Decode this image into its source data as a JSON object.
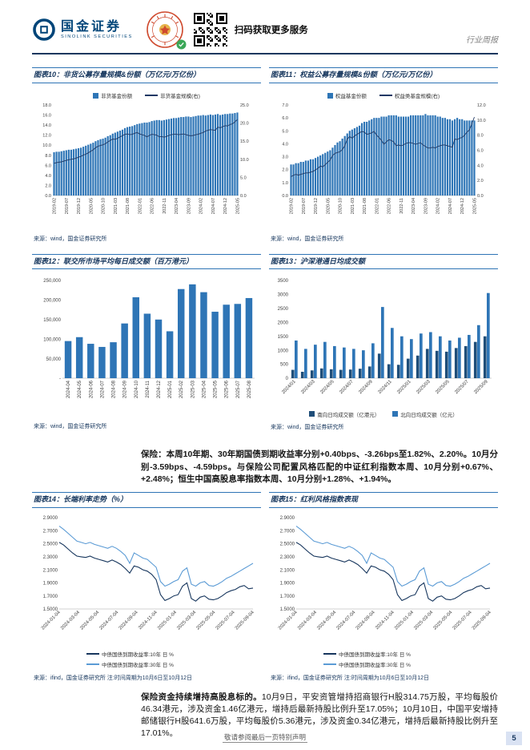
{
  "header": {
    "logo_cn": "国金证券",
    "logo_en": "SINOLINK SECURITIES",
    "qr_caption": "扫码获取更多服务",
    "doc_type": "行业周报"
  },
  "sections": {
    "insurance_paragraph": "保险：本周10年期、30年期国债到期收益率分别+0.40bps、-3.26bps至1.82%、2.20%。10月分别-3.59bps、-4.59bps。与保险公司配置风格匹配的中证红利指数本周、10月分别+0.67%、+2.48%；恒生中国高股息率指数本周、10月分别+1.28%、+1.94%。",
    "bottom_lead": "保险资金持续增持高股息标的。",
    "bottom_body": "10月9日，平安资管增持招商银行H股314.75万股，平均每股价46.34港元，涉及资金1.46亿港元，增持后最新持股比例升至17.05%；10月10日，中国平安增持邮储银行H股641.6万股，平均每股价5.36港元，涉及资金0.34亿港元，增持后最新持股比例升至17.01%。"
  },
  "footer": {
    "disclaimer": "敬请参阅最后一页特别声明",
    "page": "5"
  },
  "chart_data": [
    {
      "id": "chart10",
      "type": "bar-line",
      "title": "图表10：非货公募存量规模&份额（万亿元/万亿份）",
      "source": "来源：wind，国金证券研究所",
      "legend": [
        {
          "label": "非货基金份额",
          "swatch": "bar",
          "color": "#2e75b6"
        },
        {
          "label": "非货基金规模(右)",
          "swatch": "line",
          "color": "#1f3864"
        }
      ],
      "left_axis": {
        "min": 0,
        "max": 18,
        "ticks": [
          "18.0",
          "16.0",
          "14.0",
          "12.0",
          "10.0",
          "8.0",
          "6.0",
          "4.0",
          "2.0",
          "0.0"
        ]
      },
      "right_axis": {
        "min": 0,
        "max": 25,
        "ticks": [
          "25.0",
          "20.0",
          "15.0",
          "10.0",
          "5.0",
          "0.0"
        ]
      },
      "bar_color": "#2e75b6",
      "line_color": "#1f3864",
      "x_every": 5,
      "x_labels": [
        "2019-02",
        "2019-07",
        "2019-12",
        "2020-05",
        "2020-10",
        "2021-03",
        "2021-08",
        "2022-01",
        "2022-06",
        "2022-11",
        "2023-04",
        "2023-09",
        "2024-02",
        "2024-07",
        "2024-12",
        "2025-05"
      ],
      "bars": [
        8.6,
        8.7,
        8.7,
        8.8,
        8.9,
        9.0,
        9.1,
        9.1,
        9.2,
        9.3,
        9.4,
        9.5,
        9.7,
        9.9,
        10.1,
        10.3,
        10.5,
        10.8,
        11.0,
        11.2,
        11.3,
        11.5,
        11.8,
        12.0,
        12.3,
        12.5,
        12.7,
        12.9,
        13.1,
        13.4,
        13.6,
        13.7,
        13.8,
        14.0,
        14.2,
        14.3,
        14.4,
        14.5,
        14.5,
        14.6,
        14.8,
        14.9,
        15.0,
        15.0,
        14.9,
        15.0,
        15.1,
        15.2,
        15.3,
        15.4,
        15.4,
        15.5,
        15.6,
        15.6,
        15.7,
        15.7,
        15.6,
        15.7,
        15.8,
        15.9,
        15.9,
        16.0,
        15.9,
        16.0,
        16.1,
        16.0,
        16.1,
        16.2,
        16.0,
        16.1,
        16.2,
        16.2,
        16.3,
        16.3,
        16.4,
        16.5
      ],
      "line": [
        8.9,
        9.1,
        9.2,
        9.3,
        9.5,
        9.7,
        9.9,
        10.0,
        10.1,
        10.3,
        10.6,
        10.8,
        11.2,
        11.4,
        11.8,
        12.2,
        12.6,
        13.2,
        13.6,
        13.8,
        14.0,
        14.3,
        14.8,
        15.2,
        15.6,
        15.5,
        15.8,
        16.2,
        16.5,
        16.9,
        17.0,
        16.8,
        16.9,
        17.2,
        17.4,
        17.0,
        16.8,
        16.6,
        16.2,
        16.6,
        16.9,
        16.8,
        16.7,
        16.2,
        16.3,
        16.1,
        16.3,
        16.6,
        16.8,
        16.9,
        16.9,
        16.8,
        16.9,
        17.0,
        16.8,
        16.6,
        16.5,
        16.6,
        16.8,
        16.9,
        17.2,
        17.4,
        17.8,
        18.0,
        18.2,
        18.1,
        18.0,
        18.9,
        18.7,
        19.0,
        19.3,
        19.2,
        19.6,
        19.8,
        20.3,
        21.0
      ]
    },
    {
      "id": "chart11",
      "type": "bar-line",
      "title": "图表11：权益公募存量规模&份额（万亿元/万亿份）",
      "source": "来源：wind，国金证券研究所",
      "legend": [
        {
          "label": "权益基金份额",
          "swatch": "bar",
          "color": "#2e75b6"
        },
        {
          "label": "权益类基金规模(右)",
          "swatch": "line",
          "color": "#1f3864"
        }
      ],
      "left_axis": {
        "min": 0,
        "max": 7,
        "ticks": [
          "7.0",
          "6.0",
          "5.0",
          "4.0",
          "3.0",
          "2.0",
          "1.0",
          "0.0"
        ]
      },
      "right_axis": {
        "min": 0,
        "max": 12,
        "ticks": [
          "12.0",
          "10.0",
          "8.0",
          "6.0",
          "4.0",
          "2.0",
          "0.0"
        ]
      },
      "bar_color": "#2e75b6",
      "line_color": "#1f3864",
      "x_every": 5,
      "x_labels": [
        "2019-02",
        "2019-07",
        "2019-12",
        "2020-05",
        "2020-10",
        "2021-03",
        "2021-08",
        "2022-01",
        "2022-06",
        "2022-11",
        "2023-04",
        "2023-09",
        "2024-02",
        "2024-07",
        "2024-12",
        "2025-05"
      ],
      "bars": [
        2.4,
        2.4,
        2.5,
        2.5,
        2.6,
        2.6,
        2.7,
        2.7,
        2.8,
        2.8,
        2.9,
        3.0,
        3.1,
        3.2,
        3.3,
        3.4,
        3.5,
        3.7,
        3.9,
        4.1,
        4.2,
        4.4,
        4.6,
        4.8,
        5.0,
        5.1,
        5.2,
        5.3,
        5.4,
        5.6,
        5.7,
        5.7,
        5.8,
        5.9,
        6.0,
        6.0,
        6.0,
        6.1,
        6.1,
        6.1,
        6.2,
        6.2,
        6.2,
        6.2,
        6.1,
        6.1,
        6.1,
        6.1,
        6.1,
        6.2,
        6.2,
        6.2,
        6.2,
        6.2,
        6.2,
        6.3,
        6.2,
        6.2,
        6.2,
        6.2,
        6.1,
        6.1,
        6.0,
        6.0,
        5.9,
        5.9,
        5.8,
        5.9,
        6.0,
        5.9,
        5.9,
        5.8,
        5.8,
        5.8,
        5.8,
        5.8
      ],
      "line": [
        2.5,
        2.7,
        2.8,
        2.7,
        2.8,
        2.9,
        3.0,
        3.0,
        3.1,
        3.2,
        3.4,
        3.6,
        3.9,
        3.8,
        4.1,
        4.4,
        4.7,
        5.3,
        5.6,
        5.7,
        5.8,
        6.1,
        6.6,
        7.5,
        7.8,
        7.6,
        7.9,
        8.1,
        8.3,
        8.5,
        8.4,
        8.1,
        8.2,
        8.3,
        8.5,
        8.0,
        7.7,
        7.3,
        6.8,
        7.1,
        7.4,
        7.3,
        7.1,
        6.6,
        6.7,
        6.6,
        6.7,
        6.9,
        7.0,
        7.0,
        6.9,
        6.8,
        6.9,
        7.0,
        6.7,
        6.5,
        6.3,
        6.3,
        6.4,
        6.3,
        6.5,
        6.6,
        6.7,
        6.7,
        6.6,
        6.5,
        6.4,
        7.5,
        7.4,
        7.6,
        7.7,
        8.0,
        8.4,
        8.7,
        9.5,
        10.4
      ]
    },
    {
      "id": "chart12",
      "type": "bar",
      "title": "图表12：联交所市场平均每日成交额（百万港元）",
      "source": "来源：wind，国金证券研究所",
      "left_axis": {
        "min": 0,
        "max": 250000,
        "ticks": [
          "250,000",
          "200,000",
          "150,000",
          "100,000",
          "50,000",
          "-"
        ]
      },
      "bar_color": "#2e75b6",
      "x_every": 1,
      "x_labels": [
        "2024-04",
        "2024-05",
        "2024-06",
        "2024-07",
        "2024-08",
        "2024-09",
        "2024-10",
        "2024-11",
        "2024-12",
        "2025-01",
        "2025-02",
        "2025-03",
        "2025-04",
        "2025-05",
        "2025-06",
        "2025-07",
        "2025-08"
      ],
      "bars": [
        95000,
        105000,
        88000,
        80000,
        92000,
        140000,
        207000,
        165000,
        150000,
        120000,
        228000,
        240000,
        220000,
        170000,
        188000,
        190000,
        205000
      ]
    },
    {
      "id": "chart13",
      "type": "grouped-bar",
      "title": "图表13：沪深港通日均成交额",
      "source": "来源：wind，国金证券研究所",
      "left_axis": {
        "min": 0,
        "max": 3500,
        "ticks": [
          "3500",
          "3000",
          "2500",
          "2000",
          "1500",
          "1000",
          "500",
          "0"
        ]
      },
      "x_every": 2,
      "x": [
        "2024/01",
        "2024/02",
        "2024/03",
        "2024/04",
        "2024/05",
        "2024/06",
        "2024/07",
        "2024/08",
        "2024/09",
        "2024/10",
        "2024/11",
        "2024/12",
        "2025/01",
        "2025/02",
        "2025/03",
        "2025/04",
        "2025/05",
        "2025/06",
        "2025/07",
        "2025/08",
        "2025/09"
      ],
      "x_labels": [
        "2024/01",
        "2024/03",
        "2024/05",
        "2024/07",
        "2024/09",
        "2024/11",
        "2025/01",
        "2025/03",
        "2025/05",
        "2025/07",
        "2025/09"
      ],
      "series": [
        {
          "name": "南向日均成交额（亿港元）",
          "color": "#1f4e79",
          "values": [
            300,
            230,
            280,
            350,
            320,
            300,
            310,
            340,
            420,
            880,
            500,
            480,
            700,
            810,
            1050,
            980,
            950,
            1080,
            1150,
            1300,
            1500
          ]
        },
        {
          "name": "北向日均成交额（亿元）",
          "color": "#2e75b6",
          "values": [
            1350,
            1050,
            1200,
            1300,
            1150,
            1100,
            1050,
            1000,
            1250,
            2550,
            1800,
            1500,
            1400,
            1600,
            1650,
            1500,
            1350,
            1450,
            1550,
            1900,
            3050
          ]
        }
      ]
    },
    {
      "id": "chart14",
      "type": "line",
      "title": "图表14：长端利率走势（%）",
      "source": "来源：ifind，国金证券研究所  注:时间周期为10月6日至10月12日",
      "left_axis": {
        "min": 1.5,
        "max": 2.9,
        "ticks": [
          "2.9000",
          "2.7000",
          "2.5000",
          "2.3000",
          "2.1000",
          "1.9000",
          "1.7000",
          "1.5000"
        ]
      },
      "x_labels": [
        "2024-01-04",
        "2024-03-04",
        "2024-05-04",
        "2024-07-04",
        "2024-09-04",
        "2024-11-04",
        "2025-01-04",
        "2025-03-04",
        "2025-05-04",
        "2025-07-04",
        "2025-09-04"
      ],
      "lines": [
        {
          "name": "中债国债到期收益率:10年 日 %",
          "color": "#17365d",
          "values": [
            2.52,
            2.48,
            2.42,
            2.36,
            2.31,
            2.3,
            2.29,
            2.31,
            2.28,
            2.26,
            2.24,
            2.22,
            2.25,
            2.22,
            2.18,
            2.12,
            2.05,
            2.16,
            2.14,
            2.1,
            2.08,
            2.03,
            1.95,
            1.72,
            1.63,
            1.66,
            1.7,
            1.72,
            1.85,
            1.9,
            1.66,
            1.62,
            1.68,
            1.7,
            1.65,
            1.64,
            1.66,
            1.7,
            1.75,
            1.78,
            1.8,
            1.84,
            1.86,
            1.81,
            1.82
          ]
        },
        {
          "name": "中债国债到期收益率:30年 日 %",
          "color": "#5b9bd5",
          "values": [
            2.77,
            2.72,
            2.66,
            2.6,
            2.54,
            2.52,
            2.5,
            2.52,
            2.49,
            2.47,
            2.45,
            2.43,
            2.46,
            2.43,
            2.38,
            2.32,
            2.2,
            2.36,
            2.32,
            2.28,
            2.26,
            2.2,
            2.14,
            1.92,
            1.85,
            1.88,
            1.92,
            1.95,
            2.08,
            2.13,
            1.88,
            1.85,
            1.9,
            1.92,
            1.86,
            1.85,
            1.88,
            1.92,
            1.97,
            2.0,
            2.04,
            2.08,
            2.12,
            2.16,
            2.2
          ]
        }
      ]
    },
    {
      "id": "chart15",
      "type": "line",
      "title": "图表15：红利风格指数表现",
      "source": "来源：ifind，国金证券研究所  注:时间周期为10月6日至10月12日",
      "left_axis": {
        "min": 1.5,
        "max": 2.9,
        "ticks": [
          "2.9000",
          "2.7000",
          "2.5000",
          "2.3000",
          "2.1000",
          "1.9000",
          "1.7000",
          "1.5000"
        ]
      },
      "x_labels": [
        "2024-01-04",
        "2024-03-04",
        "2024-05-04",
        "2024-07-04",
        "2024-09-04",
        "2024-11-04",
        "2025-01-04",
        "2025-03-04",
        "2025-05-04",
        "2025-07-04",
        "2025-09-04"
      ],
      "lines": [
        {
          "name": "中债国债到期收益率:10年 日 %",
          "color": "#17365d",
          "values": [
            2.52,
            2.48,
            2.42,
            2.36,
            2.31,
            2.3,
            2.29,
            2.31,
            2.28,
            2.26,
            2.24,
            2.22,
            2.25,
            2.22,
            2.18,
            2.12,
            2.05,
            2.16,
            2.14,
            2.1,
            2.08,
            2.03,
            1.95,
            1.72,
            1.63,
            1.66,
            1.7,
            1.72,
            1.85,
            1.9,
            1.66,
            1.62,
            1.68,
            1.7,
            1.65,
            1.64,
            1.66,
            1.7,
            1.75,
            1.78,
            1.8,
            1.84,
            1.86,
            1.81,
            1.82
          ]
        },
        {
          "name": "中债国债到期收益率:30年 日 %",
          "color": "#5b9bd5",
          "values": [
            2.77,
            2.72,
            2.66,
            2.6,
            2.54,
            2.52,
            2.5,
            2.52,
            2.49,
            2.47,
            2.45,
            2.43,
            2.46,
            2.43,
            2.38,
            2.32,
            2.2,
            2.36,
            2.32,
            2.28,
            2.26,
            2.2,
            2.14,
            1.92,
            1.85,
            1.88,
            1.92,
            1.95,
            2.08,
            2.13,
            1.88,
            1.85,
            1.9,
            1.92,
            1.86,
            1.85,
            1.88,
            1.92,
            1.97,
            2.0,
            2.04,
            2.08,
            2.12,
            2.16,
            2.2
          ]
        }
      ]
    }
  ]
}
